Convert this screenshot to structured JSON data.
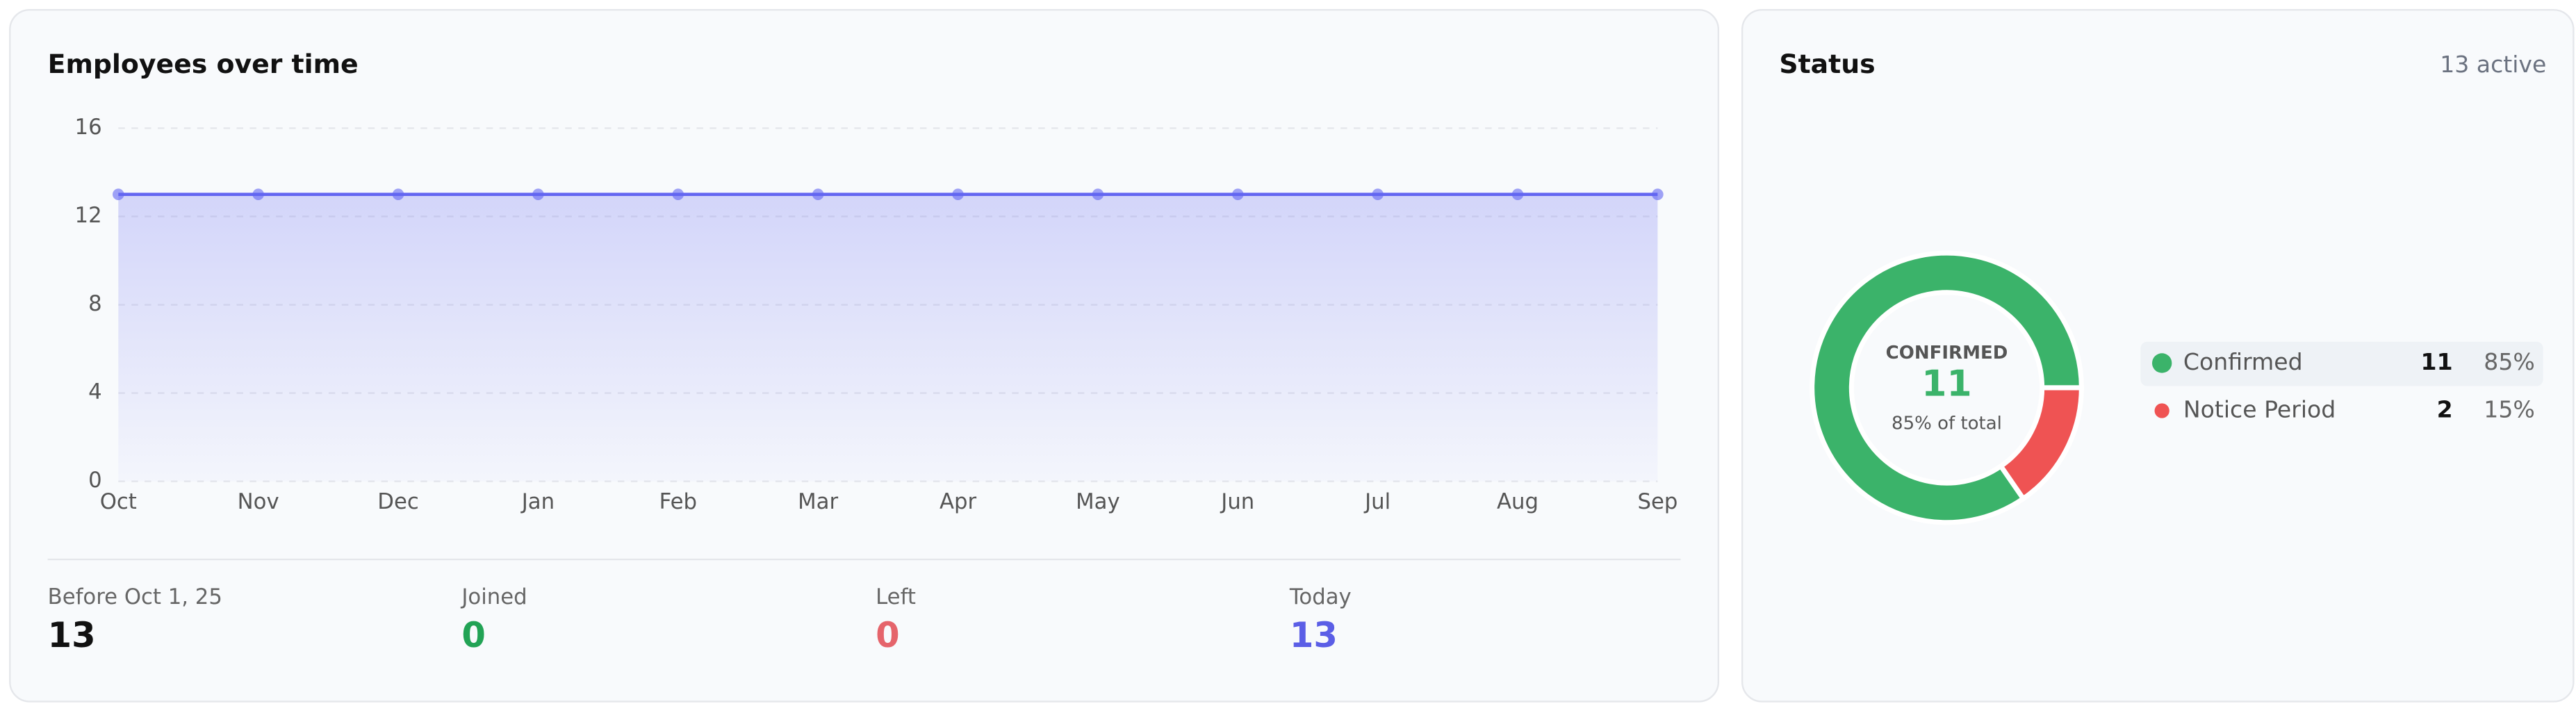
{
  "chart_data": [
    {
      "type": "line",
      "title": "Employees over time",
      "categories": [
        "Oct",
        "Nov",
        "Dec",
        "Jan",
        "Feb",
        "Mar",
        "Apr",
        "May",
        "Jun",
        "Jul",
        "Aug",
        "Sep"
      ],
      "series": [
        {
          "color": "#6366f1",
          "values": [
            13,
            13,
            13,
            13,
            13,
            13,
            13,
            13,
            13,
            13,
            13,
            13
          ]
        }
      ],
      "ylim": [
        0,
        16
      ],
      "yticks": [
        0,
        4,
        8,
        12,
        16
      ],
      "grid": true
    },
    {
      "type": "pie",
      "title": "Status",
      "subtitle": "13 active",
      "categories": [
        "Confirmed",
        "Notice Period"
      ],
      "values": [
        11,
        2
      ],
      "percents": {
        "values": [
          85,
          15
        ],
        "value_labels": [
          "85%",
          "15%"
        ]
      },
      "colors": [
        "#3bb36a",
        "#ef5353"
      ],
      "center_label": "CONFIRMED",
      "center_caption": "85% of total"
    }
  ],
  "summary": [
    {
      "label": "Before Oct 1, 25",
      "value": 13
    },
    {
      "label": "Joined",
      "value": 0
    },
    {
      "label": "Left",
      "value": 0
    },
    {
      "label": "Today",
      "value": 13
    }
  ]
}
